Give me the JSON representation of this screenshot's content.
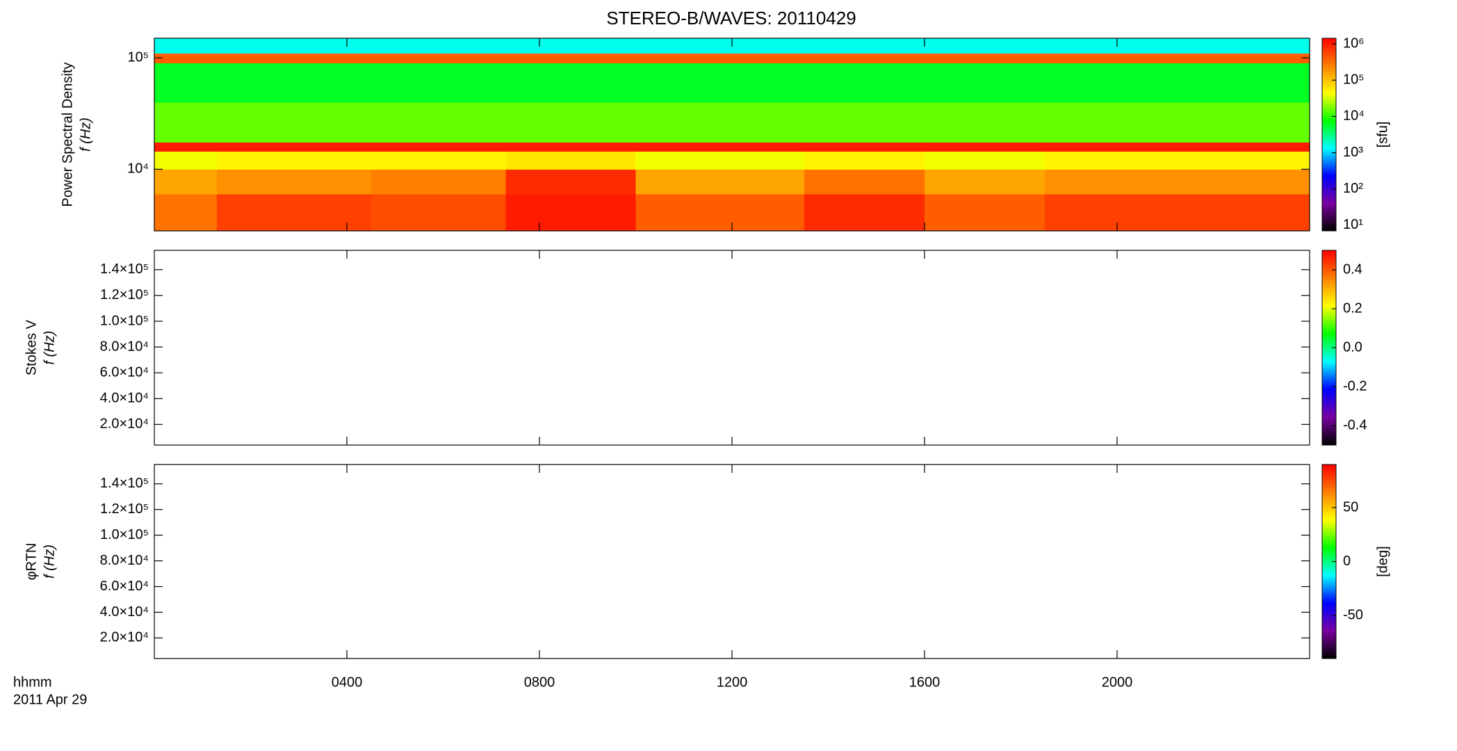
{
  "title": "STEREO-B/WAVES: 20110429",
  "colormap": [
    "#000000",
    "#7a00a0",
    "#0000ff",
    "#00ffff",
    "#00ff00",
    "#ffff00",
    "#ff8000",
    "#ff0000"
  ],
  "time_axis": {
    "xlim": [
      0,
      24
    ],
    "xticks": [
      {
        "value": 4,
        "label": "0400"
      },
      {
        "value": 8,
        "label": "0800"
      },
      {
        "value": 12,
        "label": "1200"
      },
      {
        "value": 16,
        "label": "1600"
      },
      {
        "value": 20,
        "label": "2000"
      }
    ],
    "label": "hhmm",
    "date": "2011 Apr 29"
  },
  "chart_data": [
    {
      "type": "heatmap",
      "ylabel": "Power Spectral Density",
      "ylabel2": "f (Hz)",
      "ylog": true,
      "ylim": [
        2800,
        150000
      ],
      "yticks": [
        {
          "value": 10000,
          "label": "10⁴"
        },
        {
          "value": 100000,
          "label": "10⁵"
        }
      ],
      "time_edges": [
        0,
        1.3,
        4.5,
        7.3,
        10,
        13.5,
        16,
        18.5,
        24
      ],
      "freq_edges": [
        2800,
        6000,
        10000,
        14500,
        17500,
        40000,
        90000,
        110000,
        150000
      ],
      "values": [
        [
          300000,
          600000,
          500000,
          1000000,
          400000,
          800000,
          400000,
          600000
        ],
        [
          150000,
          200000,
          250000,
          800000,
          150000,
          300000,
          150000,
          200000
        ],
        [
          40000,
          50000,
          50000,
          60000,
          40000,
          50000,
          40000,
          50000
        ],
        [
          1000000,
          1000000,
          1000000,
          1000000,
          1000000,
          1000000,
          1000000,
          1000000
        ],
        [
          15000,
          15000,
          15000,
          15000,
          15000,
          15000,
          15000,
          15000
        ],
        [
          6000,
          6000,
          6000,
          6000,
          6000,
          6000,
          6000,
          6000
        ],
        [
          400000,
          400000,
          400000,
          400000,
          400000,
          400000,
          400000,
          400000
        ],
        [
          1500,
          1500,
          1500,
          1500,
          1500,
          1500,
          1500,
          1500
        ]
      ],
      "colorbar": {
        "scale": "log",
        "lim": [
          7,
          1430000
        ],
        "ticks": [
          {
            "value": 10,
            "label": "10¹"
          },
          {
            "value": 100,
            "label": "10²"
          },
          {
            "value": 1000,
            "label": "10³"
          },
          {
            "value": 10000,
            "label": "10⁴"
          },
          {
            "value": 100000,
            "label": "10⁵"
          },
          {
            "value": 1000000,
            "label": "10⁶"
          }
        ],
        "label": "[sfu]"
      }
    },
    {
      "type": "heatmap",
      "ylabel": "Stokes V",
      "ylabel2": "f (Hz)",
      "ylog": false,
      "ylim": [
        4000,
        155000
      ],
      "yticks": [
        {
          "value": 20000,
          "label": "2.0×10⁴"
        },
        {
          "value": 40000,
          "label": "4.0×10⁴"
        },
        {
          "value": 60000,
          "label": "6.0×10⁴"
        },
        {
          "value": 80000,
          "label": "8.0×10⁴"
        },
        {
          "value": 100000,
          "label": "1.0×10⁵"
        },
        {
          "value": 120000,
          "label": "1.2×10⁵"
        },
        {
          "value": 140000,
          "label": "1.4×10⁵"
        }
      ],
      "colorbar": {
        "scale": "linear",
        "lim": [
          -0.5,
          0.5
        ],
        "ticks": [
          -0.4,
          -0.2,
          {
            "value": 0,
            "label": "0.0"
          },
          0.2,
          0.4
        ]
      }
    },
    {
      "type": "heatmap",
      "ylabel": "φRTN",
      "ylabel2": "f (Hz)",
      "ylog": false,
      "ylim": [
        4000,
        155000
      ],
      "yticks": [
        {
          "value": 20000,
          "label": "2.0×10⁴"
        },
        {
          "value": 40000,
          "label": "4.0×10⁴"
        },
        {
          "value": 60000,
          "label": "6.0×10⁴"
        },
        {
          "value": 80000,
          "label": "8.0×10⁴"
        },
        {
          "value": 100000,
          "label": "1.0×10⁵"
        },
        {
          "value": 120000,
          "label": "1.2×10⁵"
        },
        {
          "value": 140000,
          "label": "1.4×10⁵"
        }
      ],
      "colorbar": {
        "scale": "linear",
        "lim": [
          -90,
          90
        ],
        "ticks": [
          -50,
          0,
          50
        ],
        "label": "[deg]"
      }
    }
  ]
}
